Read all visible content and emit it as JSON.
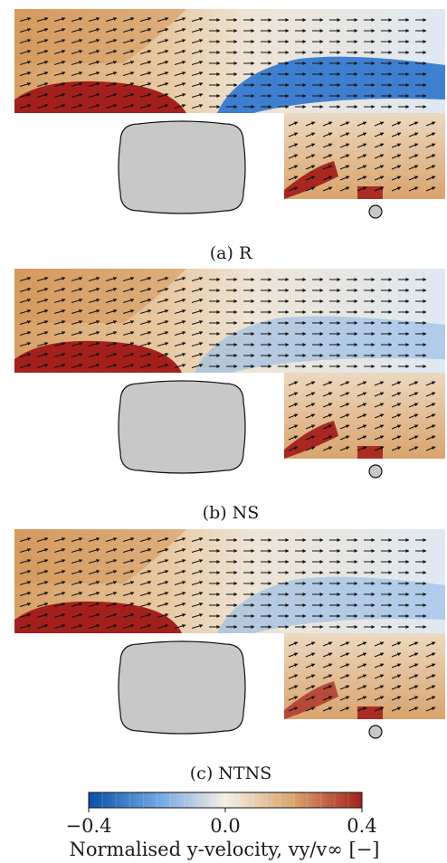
{
  "panels": [
    {
      "caption": "(a) R"
    },
    {
      "caption": "(b) NS"
    },
    {
      "caption": "(c) NTNS"
    }
  ],
  "colorbar": {
    "ticks": [
      -0.4,
      0.0,
      0.4
    ],
    "tick_labels": [
      "−0.4",
      "0.0",
      "0.4"
    ],
    "label": "Normalised y-velocity, vy/v∞ [−]",
    "colors": {
      "min": "#0a4fa8",
      "mid": "#f4efe6",
      "max": "#a4201c"
    }
  },
  "chart_data": {
    "type": "heatmap",
    "quantity": "Normalised y-velocity, vy/v∞ [−]",
    "color_range": [
      -0.4,
      0.4
    ],
    "colorbar_ticks": [
      -0.4,
      0.0,
      0.4
    ],
    "panels": [
      {
        "caption": "(a) R",
        "overlay": "velocity vectors"
      },
      {
        "caption": "(b) NS",
        "overlay": "velocity vectors"
      },
      {
        "caption": "(c) NTNS",
        "overlay": "velocity vectors"
      }
    ]
  }
}
